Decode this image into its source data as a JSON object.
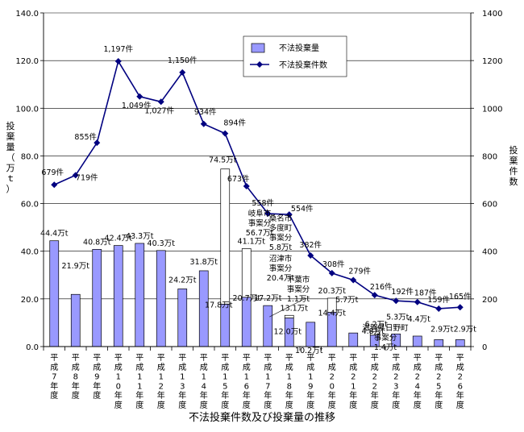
{
  "chart_data": {
    "type": "bar+line",
    "title": "不法投棄件数及び投棄量の推移",
    "ylabel_left": "投棄量（万ｔ）",
    "ylabel_right": "投棄件数",
    "ylim_left": [
      0,
      140
    ],
    "ylim_right": [
      0,
      1400
    ],
    "yticks_left": [
      "0.0",
      "20.0",
      "40.0",
      "60.0",
      "80.0",
      "100.0",
      "120.0",
      "140.0"
    ],
    "yticks_right": [
      "0",
      "200",
      "400",
      "600",
      "800",
      "1000",
      "1200",
      "1400"
    ],
    "legend_position": "top-right",
    "legend": [
      {
        "name": "不法投棄量",
        "kind": "bar"
      },
      {
        "name": "不法投棄件数",
        "kind": "line"
      }
    ],
    "categories": [
      "平成7年度",
      "平成8年度",
      "平成9年度",
      "平成10年度",
      "平成11年度",
      "平成12年度",
      "平成13年度",
      "平成14年度",
      "平成15年度",
      "平成16年度",
      "平成17年度",
      "平成18年度",
      "平成19年度",
      "平成20年度",
      "平成21年度",
      "平成22年度",
      "平成23年度",
      "平成24年度",
      "平成25年度",
      "平成26年度"
    ],
    "series": [
      {
        "name": "不法投棄量",
        "axis": "left",
        "values": [
          44.4,
          21.9,
          40.8,
          42.4,
          43.3,
          40.3,
          24.2,
          31.8,
          74.5,
          41.1,
          17.2,
          13.1,
          10.2,
          20.3,
          5.7,
          6.2,
          5.3,
          4.4,
          2.9,
          2.9
        ],
        "labels": [
          "44.4万t",
          "21.9万t",
          "40.8万t",
          "42.4万t",
          "43.3万t",
          "40.3万t",
          "24.2万t",
          "31.8万t",
          "74.5万t",
          "41.1万t",
          "17.2万t",
          "13.1万t",
          "10.2万t",
          "20.3万t",
          "5.7万t",
          "6.2万t",
          "5.3万t",
          "4.4万t",
          "2.9万t",
          "2.9万t"
        ],
        "base_values": [
          44.4,
          21.9,
          40.8,
          42.4,
          43.3,
          40.3,
          24.2,
          31.8,
          17.8,
          20.7,
          17.2,
          12.0,
          10.2,
          14.4,
          5.7,
          4.8,
          5.3,
          4.4,
          2.9,
          2.9
        ],
        "base_labels": [
          "",
          "",
          "",
          "",
          "",
          "",
          "",
          "",
          "17.8万t",
          "20.7万t",
          "",
          "12.0万t",
          "",
          "14.4万t",
          "",
          "4.8万t",
          "",
          "",
          "",
          ""
        ],
        "large_case_values": [
          0,
          0,
          0,
          0,
          0,
          0,
          0,
          0,
          56.7,
          20.4,
          0,
          1.1,
          0,
          5.8,
          0,
          1.4,
          0,
          0,
          0,
          0
        ]
      },
      {
        "name": "不法投棄件数",
        "axis": "right",
        "values": [
          679,
          719,
          855,
          1197,
          1049,
          1027,
          1150,
          934,
          894,
          673,
          558,
          554,
          382,
          308,
          279,
          216,
          192,
          187,
          159,
          165
        ],
        "labels": [
          "679件",
          "719件",
          "855件",
          "1,197件",
          "1,049件",
          "1,027件",
          "1,150件",
          "934件",
          "894件",
          "673件",
          "558件",
          "554件",
          "382件",
          "308件",
          "279件",
          "216件",
          "192件",
          "187件",
          "159件",
          "165件"
        ]
      }
    ],
    "annotations": [
      {
        "index": 8,
        "lines": [
          "岐阜市",
          "事案分",
          "56.7万t"
        ]
      },
      {
        "index": 9,
        "lines": [
          "沼津市",
          "事案分",
          "20.4万t"
        ]
      },
      {
        "index": 10,
        "lines": [
          "桑名市",
          "多度町",
          "事案分",
          "5.8万t"
        ]
      },
      {
        "index": 11,
        "lines": [
          "千葉市",
          "事案分",
          "1.1万t"
        ]
      },
      {
        "index": 15,
        "lines": [
          "滋賀県日野町",
          "事案分",
          "1.4万t"
        ]
      }
    ]
  }
}
